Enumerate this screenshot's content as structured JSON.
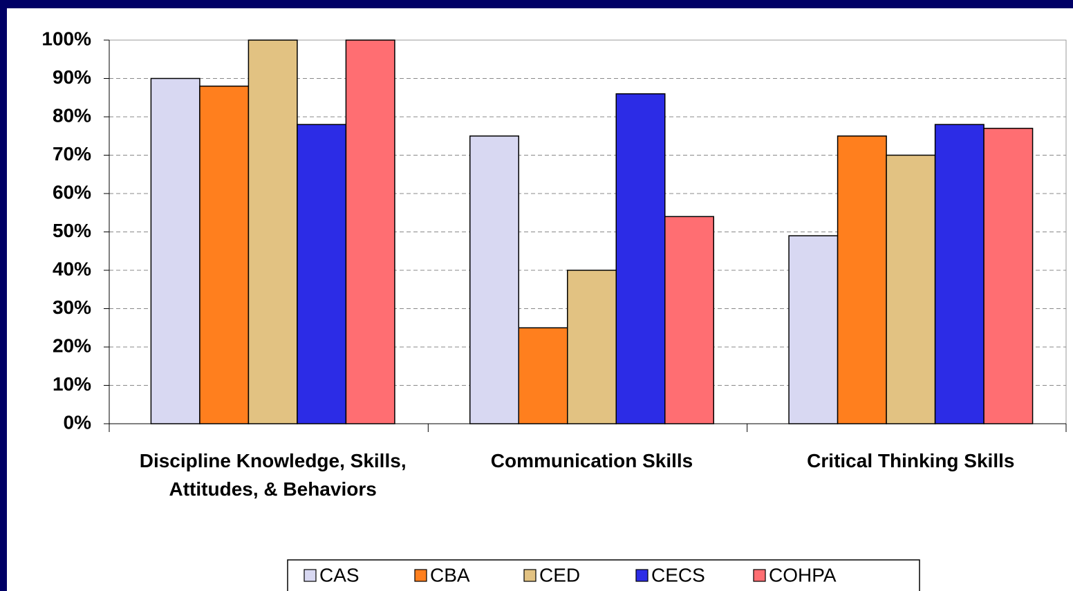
{
  "chart_data": {
    "type": "bar",
    "categories": [
      "Discipline Knowledge, Skills, Attitudes, & Behaviors",
      "Communication Skills",
      "Critical Thinking Skills"
    ],
    "series": [
      {
        "name": "CAS",
        "color": "#d8d8f2",
        "values": [
          90,
          75,
          49
        ]
      },
      {
        "name": "CBA",
        "color": "#ff7f1e",
        "values": [
          88,
          25,
          75
        ]
      },
      {
        "name": "CED",
        "color": "#e2c282",
        "values": [
          100,
          40,
          70
        ]
      },
      {
        "name": "CECS",
        "color": "#2c2ce6",
        "values": [
          78,
          86,
          78
        ]
      },
      {
        "name": "COHPA",
        "color": "#ff6e72",
        "values": [
          100,
          54,
          77
        ]
      }
    ],
    "ylim": [
      0,
      100
    ],
    "yticks": [
      {
        "value": 0,
        "label": "0%"
      },
      {
        "value": 10,
        "label": "10%"
      },
      {
        "value": 20,
        "label": "20%"
      },
      {
        "value": 30,
        "label": "30%"
      },
      {
        "value": 40,
        "label": "40%"
      },
      {
        "value": 50,
        "label": "50%"
      },
      {
        "value": 60,
        "label": "60%"
      },
      {
        "value": 70,
        "label": "70%"
      },
      {
        "value": 80,
        "label": "80%"
      },
      {
        "value": 90,
        "label": "90%"
      },
      {
        "value": 100,
        "label": "100%"
      }
    ],
    "grid": true,
    "legend": "bottom"
  }
}
